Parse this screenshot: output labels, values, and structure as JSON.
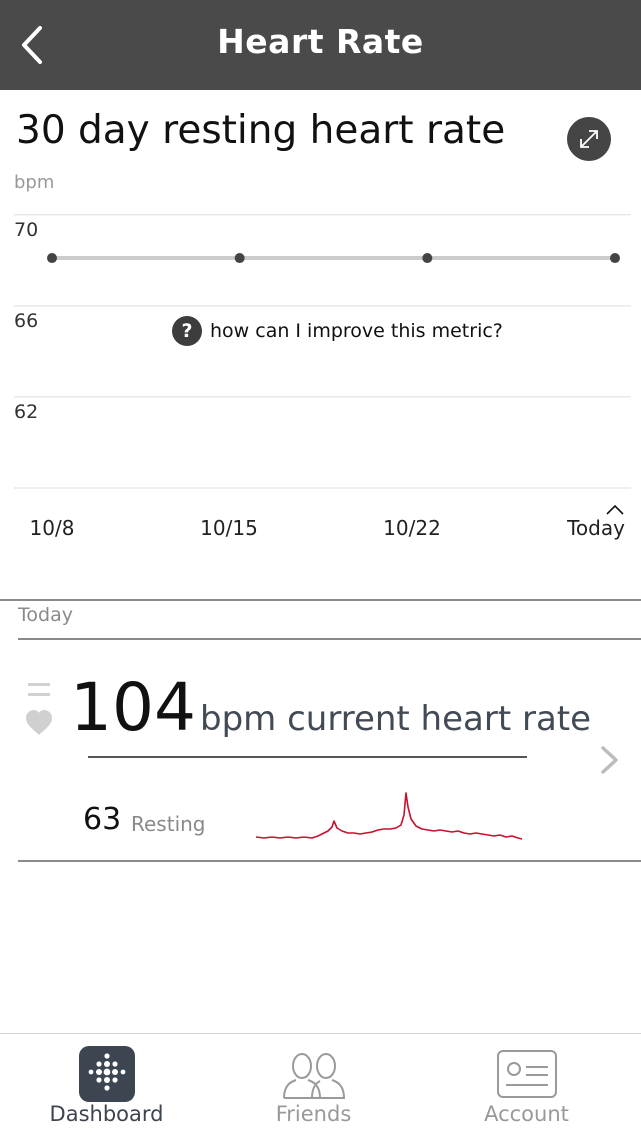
{
  "header": {
    "title": "Heart Rate"
  },
  "chart_section": {
    "title": "30 day resting heart rate",
    "help_text": "how can I improve this metric?"
  },
  "chart_data": {
    "type": "line",
    "title": "30 day resting heart rate",
    "ylabel": "bpm",
    "xlabel": "",
    "categories": [
      "10/8",
      "10/15",
      "10/22",
      "Today"
    ],
    "y_ticks": [
      70,
      66,
      62
    ],
    "ylim": [
      58,
      71
    ],
    "grid": true,
    "series": [
      {
        "values": [
          68.1,
          68.1,
          68.1,
          68.1
        ]
      }
    ],
    "colors": {
      "line": "#cccccc",
      "point": "#444444",
      "grid": "#dddddd"
    }
  },
  "today": {
    "label": "Today",
    "current_value": "104",
    "current_label": "bpm current heart rate",
    "resting_value": "63",
    "resting_label": "Resting",
    "sparkline_color": "#c8102e"
  },
  "tabs": [
    {
      "label": "Dashboard",
      "icon": "fitbit-logo-icon",
      "active": true
    },
    {
      "label": "Friends",
      "icon": "friends-icon",
      "active": false
    },
    {
      "label": "Account",
      "icon": "account-card-icon",
      "active": false
    }
  ]
}
